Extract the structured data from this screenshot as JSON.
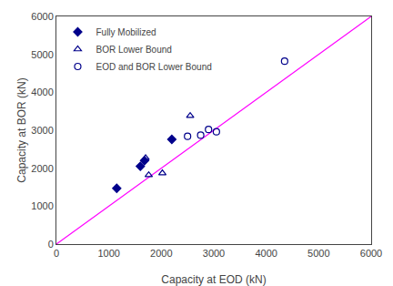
{
  "chart_data": {
    "type": "scatter",
    "xlabel": "Capacity at EOD (kN)",
    "ylabel": "Capacity at BOR (kN)",
    "series": [
      {
        "type": "line",
        "color": "#ff00ff",
        "values": [
          [
            0,
            0
          ],
          [
            6000,
            6000
          ]
        ]
      },
      {
        "name": "Fully Mobilized",
        "color": "#00008B",
        "marker": "diamond",
        "values": [
          [
            1150,
            1470
          ],
          [
            1600,
            2050
          ],
          [
            1680,
            2200
          ],
          [
            2200,
            2760
          ]
        ]
      },
      {
        "name": "BOR Lower Bound",
        "color": "#00008B",
        "marker": "triangle-up-open",
        "values": [
          [
            1700,
            2270
          ],
          [
            1760,
            1820
          ],
          [
            2020,
            1870
          ],
          [
            2550,
            3380
          ]
        ]
      },
      {
        "name": "EOD and BOR Lower Bound",
        "color": "#00008B",
        "marker": "circle-open",
        "values": [
          [
            2500,
            2840
          ],
          [
            2750,
            2870
          ],
          [
            2900,
            3020
          ],
          [
            3050,
            2960
          ],
          [
            4350,
            4820
          ]
        ]
      }
    ],
    "xlim": [
      0,
      6000
    ],
    "ylim": [
      0,
      6000
    ],
    "xticks": [
      0,
      1000,
      2000,
      3000,
      4000,
      5000,
      6000
    ],
    "yticks": [
      0,
      1000,
      2000,
      3000,
      4000,
      5000,
      6000
    ],
    "grid": false,
    "legend": "upper left"
  }
}
